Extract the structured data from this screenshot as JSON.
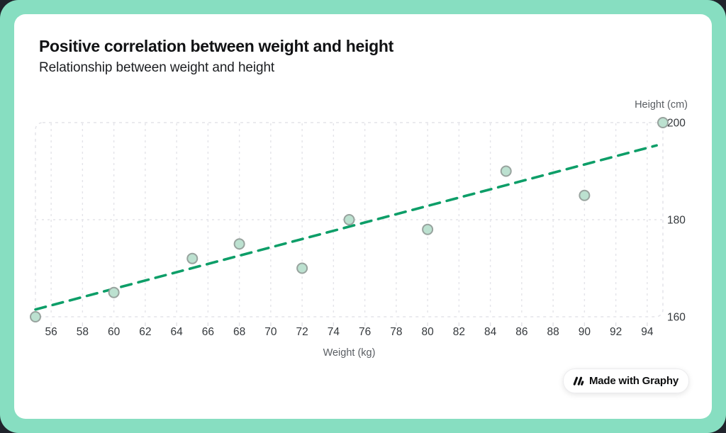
{
  "header": {
    "title": "Positive correlation between weight and height",
    "subtitle": "Relationship between weight and height"
  },
  "chart_data": {
    "type": "scatter",
    "title": "Positive correlation between weight and height",
    "subtitle": "Relationship between weight and height",
    "xlabel": "Weight (kg)",
    "ylabel": "Height (cm)",
    "xlim": [
      55,
      95
    ],
    "ylim": [
      160,
      200
    ],
    "x_ticks": [
      56,
      58,
      60,
      62,
      64,
      66,
      68,
      70,
      72,
      74,
      76,
      78,
      80,
      82,
      84,
      86,
      88,
      90,
      92,
      94
    ],
    "y_ticks": [
      160,
      180,
      200
    ],
    "grid": true,
    "legend": false,
    "points": [
      [
        55,
        160
      ],
      [
        60,
        165
      ],
      [
        65,
        172
      ],
      [
        68,
        175
      ],
      [
        72,
        170
      ],
      [
        75,
        180
      ],
      [
        80,
        178
      ],
      [
        85,
        190
      ],
      [
        90,
        185
      ],
      [
        95,
        200
      ]
    ],
    "trend_line": {
      "style": "dashed",
      "x1": 55,
      "y1": 161.5,
      "x2": 94.6,
      "y2": 195.3
    }
  },
  "colors": {
    "accent_mint": "#87dec1",
    "outer_background": "#20242c",
    "card_background": "#ffffff",
    "trend_green": "#0d9e68",
    "marker_fill": "#bce1d0",
    "marker_stroke": "#98a39e",
    "gridline": "#e4e4e9",
    "tick_text": "#34383c",
    "axis_title_text": "#5a5e63"
  },
  "badge": {
    "label": "Made with Graphy",
    "icon": "graphy-slashes-icon"
  }
}
